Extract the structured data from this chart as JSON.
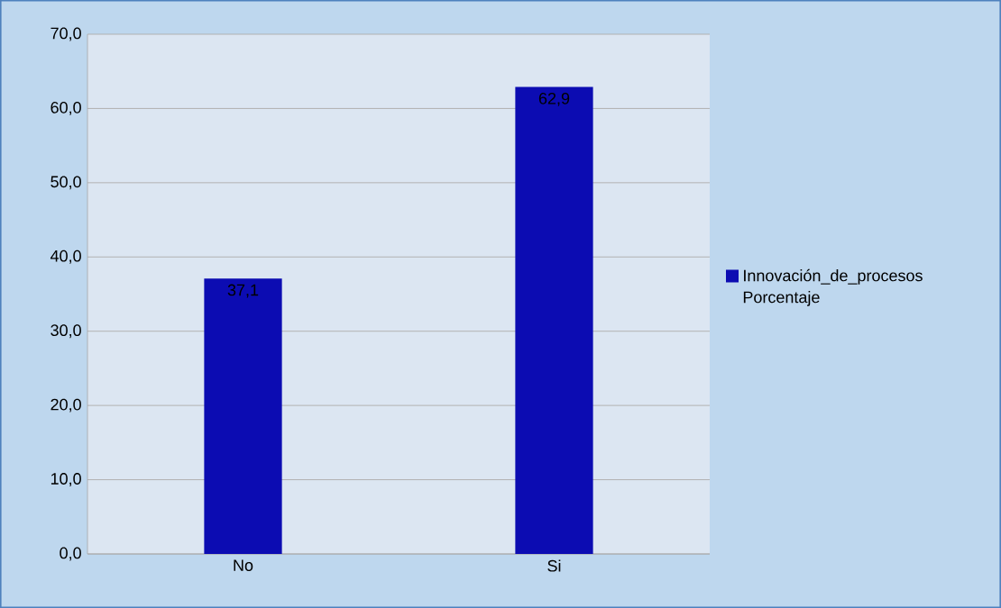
{
  "chart_data": {
    "type": "bar",
    "categories": [
      "No",
      "Si"
    ],
    "series": [
      {
        "name": "Innovación_de_procesos Porcentaje",
        "color": "#0c0cb2",
        "values": [
          37.1,
          62.9
        ],
        "value_labels": [
          "37,1",
          "62,9"
        ]
      }
    ],
    "ylim": [
      0,
      70
    ],
    "yticks": [
      {
        "value": 0,
        "label": "0,0"
      },
      {
        "value": 10,
        "label": "10,0"
      },
      {
        "value": 20,
        "label": "20,0"
      },
      {
        "value": 30,
        "label": "30,0"
      },
      {
        "value": 40,
        "label": "40,0"
      },
      {
        "value": 50,
        "label": "50,0"
      },
      {
        "value": 60,
        "label": "60,0"
      },
      {
        "value": 70,
        "label": "70,0"
      }
    ],
    "grid": "y",
    "legend": "right"
  }
}
